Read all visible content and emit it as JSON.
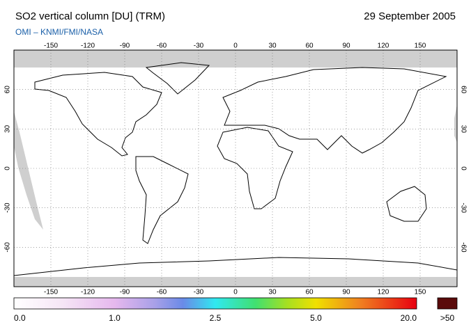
{
  "header": {
    "title": "SO2 vertical column [DU] (TRM)",
    "date": "29 September 2005",
    "credit": "OMI  –  KNMI/FMI/NASA"
  },
  "map": {
    "extent": {
      "lon": [
        -180,
        180
      ],
      "lat": [
        -90,
        90
      ]
    },
    "lon_ticks": [
      -150,
      -120,
      -90,
      -60,
      -30,
      0,
      30,
      60,
      90,
      120,
      150
    ],
    "lat_ticks": [
      60,
      30,
      0,
      -30,
      -60
    ]
  },
  "colorbar": {
    "labels": [
      "0.0",
      "1.0",
      "2.5",
      "5.0",
      "20.0"
    ],
    "overflow_label": ">50"
  }
}
